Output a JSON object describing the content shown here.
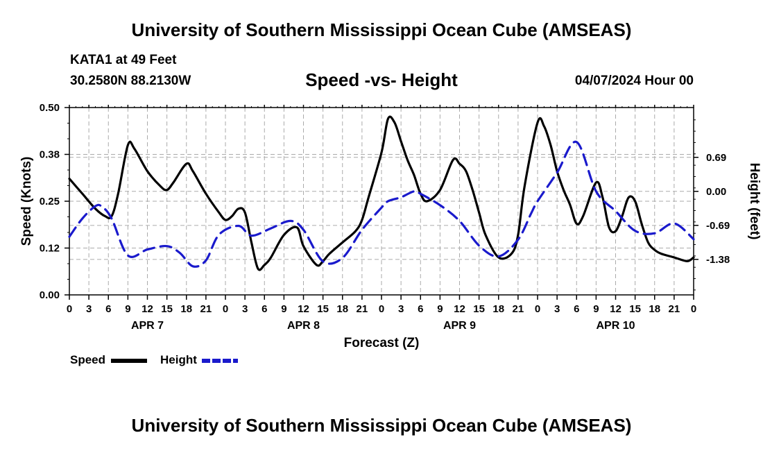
{
  "header": {
    "title": "University of Southern Mississippi Ocean Cube (AMSEAS)",
    "station": "KATA1 at 49 Feet",
    "coords": "30.2580N  88.2130W",
    "chart_title": "Speed -vs- Height",
    "datetime": "04/07/2024 Hour 00"
  },
  "footer": {
    "title": "University of Southern Mississippi Ocean Cube (AMSEAS)"
  },
  "legend": {
    "speed_label": "Speed",
    "height_label": "Height"
  },
  "colors": {
    "speed": "#000000",
    "height": "#1a1acc",
    "grid": "#aaaaaa"
  },
  "chart_data": {
    "type": "line",
    "title": "Speed -vs- Height",
    "xlabel": "Forecast (Z)",
    "ylabel": "Speed (Knots)",
    "y2label": "Height (feet)",
    "x_range": [
      0,
      96
    ],
    "ylim": [
      0,
      0.5
    ],
    "y2lim": [
      -2.1,
      1.7
    ],
    "y_ticks": [
      0.0,
      0.125,
      0.25,
      0.375,
      0.5
    ],
    "y_tick_labels": [
      "0.00",
      "0.12",
      "0.25",
      "0.38",
      "0.50"
    ],
    "y2_ticks": [
      -1.38,
      -0.69,
      0.0,
      0.69
    ],
    "y2_tick_labels": [
      "-1.38",
      "-0.69",
      "0.00",
      "0.69"
    ],
    "x_ticks": [
      0,
      3,
      6,
      9,
      12,
      15,
      18,
      21,
      24,
      27,
      30,
      33,
      36,
      39,
      42,
      45,
      48,
      51,
      54,
      57,
      60,
      63,
      66,
      69,
      72,
      75,
      78,
      81,
      84,
      87,
      90,
      93,
      96
    ],
    "x_tick_labels": [
      "0",
      "3",
      "6",
      "9",
      "12",
      "15",
      "18",
      "21",
      "0",
      "3",
      "6",
      "9",
      "12",
      "15",
      "18",
      "21",
      "0",
      "3",
      "6",
      "9",
      "12",
      "15",
      "18",
      "21",
      "0",
      "3",
      "6",
      "9",
      "12",
      "15",
      "18",
      "21",
      "0"
    ],
    "day_labels": [
      {
        "hour": 12,
        "label": "APR 7"
      },
      {
        "hour": 36,
        "label": "APR 8"
      },
      {
        "hour": 60,
        "label": "APR 9"
      },
      {
        "hour": 84,
        "label": "APR 10"
      }
    ],
    "grid": true,
    "series": [
      {
        "name": "Speed",
        "axis": "left",
        "style": "solid",
        "x": [
          0,
          2,
          4,
          5.5,
          6.5,
          7.5,
          9,
          10,
          12,
          14,
          15,
          16,
          18,
          19,
          21,
          23,
          24,
          25,
          26,
          27,
          28,
          29,
          30,
          31,
          33,
          35,
          36,
          38,
          39,
          40,
          42,
          44,
          45,
          46,
          48,
          49,
          50,
          51,
          52,
          53,
          54,
          55,
          57,
          59,
          60,
          61,
          62,
          63,
          64,
          66,
          68,
          69,
          70,
          72,
          73,
          74,
          75,
          76,
          77,
          78,
          79,
          81,
          82,
          83,
          84,
          85,
          86,
          87,
          88,
          89,
          90,
          91,
          93,
          95,
          96
        ],
        "values": [
          0.31,
          0.27,
          0.23,
          0.21,
          0.21,
          0.27,
          0.4,
          0.39,
          0.33,
          0.29,
          0.28,
          0.3,
          0.35,
          0.33,
          0.27,
          0.22,
          0.2,
          0.21,
          0.23,
          0.22,
          0.14,
          0.07,
          0.08,
          0.1,
          0.16,
          0.18,
          0.13,
          0.08,
          0.09,
          0.11,
          0.14,
          0.17,
          0.2,
          0.26,
          0.38,
          0.47,
          0.46,
          0.41,
          0.36,
          0.32,
          0.27,
          0.25,
          0.28,
          0.36,
          0.35,
          0.33,
          0.28,
          0.22,
          0.16,
          0.1,
          0.11,
          0.16,
          0.29,
          0.46,
          0.45,
          0.4,
          0.33,
          0.28,
          0.24,
          0.19,
          0.21,
          0.3,
          0.26,
          0.18,
          0.17,
          0.21,
          0.26,
          0.25,
          0.19,
          0.14,
          0.12,
          0.11,
          0.1,
          0.09,
          0.1
        ]
      },
      {
        "name": "Height",
        "axis": "right",
        "style": "dashed",
        "x": [
          0,
          2,
          4,
          5,
          6.5,
          9,
          12,
          15,
          17,
          19,
          21,
          23,
          26,
          28,
          31,
          34,
          36,
          39,
          42,
          45,
          48,
          49,
          51,
          53,
          54,
          57,
          60,
          63,
          66,
          69,
          71,
          72,
          75,
          78,
          81,
          84,
          87,
          90,
          93,
          96
        ],
        "values": [
          -0.92,
          -0.55,
          -0.3,
          -0.31,
          -0.55,
          -1.3,
          -1.18,
          -1.11,
          -1.25,
          -1.52,
          -1.4,
          -0.88,
          -0.7,
          -0.9,
          -0.75,
          -0.6,
          -0.78,
          -1.42,
          -1.35,
          -0.78,
          -0.33,
          -0.2,
          -0.12,
          0.0,
          -0.05,
          -0.28,
          -0.6,
          -1.1,
          -1.32,
          -0.98,
          -0.45,
          -0.2,
          0.38,
          1.0,
          0.0,
          -0.4,
          -0.8,
          -0.85,
          -0.65,
          -0.97
        ]
      }
    ]
  }
}
